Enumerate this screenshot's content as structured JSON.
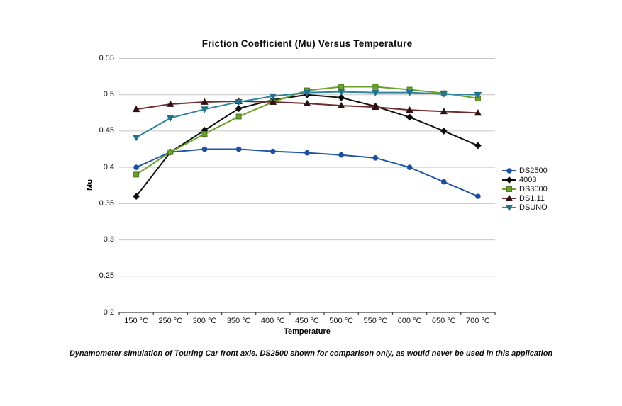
{
  "chart_data": {
    "type": "line",
    "title": "Friction Coefficient (Mu) Versus Temperature",
    "xlabel": "Temperature",
    "ylabel": "Mu",
    "ylim": [
      0.2,
      0.55
    ],
    "ytick_step": 0.05,
    "grid": true,
    "legend_position": "right",
    "categories": [
      "150 °C",
      "250 °C",
      "300 °C",
      "350 °C",
      "400 °C",
      "450 °C",
      "500 °C",
      "550 °C",
      "600 °C",
      "650 °C",
      "700 °C"
    ],
    "series": [
      {
        "name": "DS2500",
        "marker": "circle",
        "line_color": "#2155a3",
        "marker_color": "#1d4f9e",
        "values": [
          0.4,
          0.421,
          0.425,
          0.425,
          0.422,
          0.42,
          0.417,
          0.413,
          0.4,
          0.38,
          0.36
        ]
      },
      {
        "name": "4003",
        "marker": "diamond",
        "line_color": "#121212",
        "marker_color": "#0a0a0a",
        "values": [
          0.36,
          0.421,
          0.451,
          0.481,
          0.493,
          0.5,
          0.496,
          0.484,
          0.469,
          0.45,
          0.43
        ]
      },
      {
        "name": "DS3000",
        "marker": "square",
        "line_color": "#6aa22c",
        "marker_color": "#6aa22c",
        "marker_stroke": "#4d7a1c",
        "values": [
          0.39,
          0.421,
          0.446,
          0.47,
          0.49,
          0.506,
          0.511,
          0.511,
          0.507,
          0.502,
          0.495
        ]
      },
      {
        "name": "DS1.11",
        "marker": "triangle-up",
        "line_color": "#6e2b2b",
        "marker_color": "#2e1013",
        "values": [
          0.48,
          0.487,
          0.49,
          0.491,
          0.49,
          0.488,
          0.485,
          0.483,
          0.479,
          0.477,
          0.475
        ]
      },
      {
        "name": "DSUNO",
        "marker": "triangle-down",
        "line_color": "#2b84a0",
        "marker_color": "#23708c",
        "values": [
          0.441,
          0.468,
          0.48,
          0.49,
          0.498,
          0.503,
          0.504,
          0.503,
          0.503,
          0.501,
          0.5
        ]
      }
    ]
  },
  "caption": "Dynamometer simulation of Touring Car front axle. DS2500 shown for comparison only, as would never be used in this application",
  "style": {
    "gridline_color": "#c6c6c6",
    "axis_color": "#3f3f3f"
  }
}
